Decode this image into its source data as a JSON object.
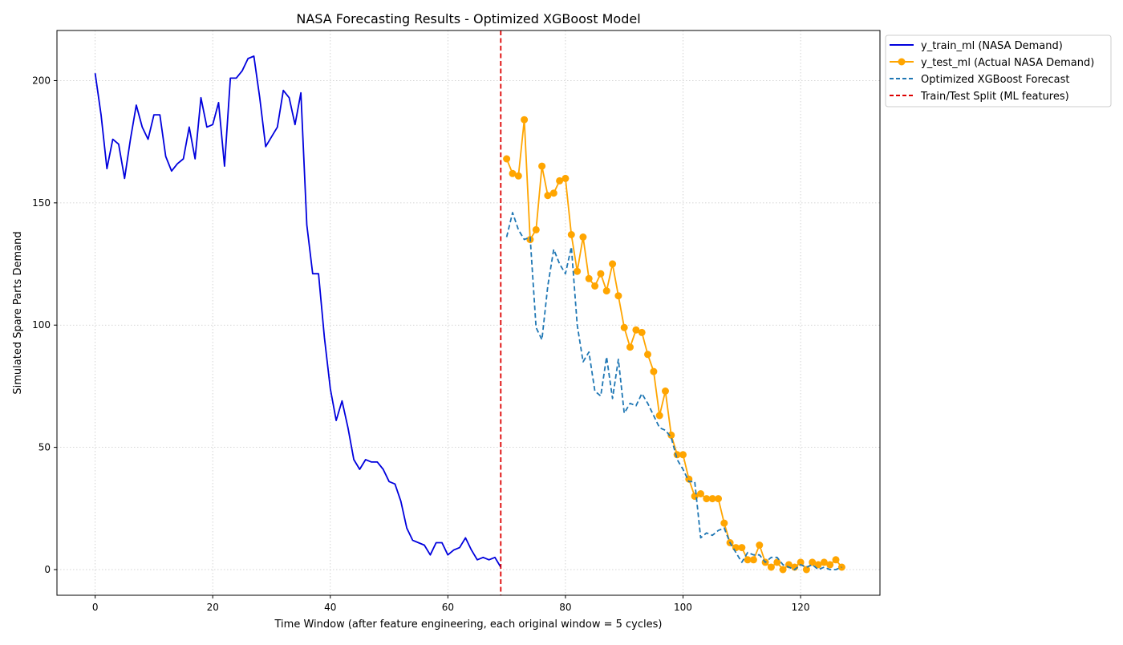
{
  "chart_data": {
    "type": "line",
    "title": "NASA Forecasting Results - Optimized XGBoost Model",
    "xlabel": "Time Window (after feature engineering, each original window = 5 cycles)",
    "ylabel": "Simulated Spare Parts Demand",
    "xlim": [
      -6.5,
      133.5
    ],
    "ylim": [
      -10.5,
      220.5
    ],
    "xticks": [
      0,
      20,
      40,
      60,
      80,
      100,
      120
    ],
    "yticks": [
      0,
      50,
      100,
      150,
      200
    ],
    "grid": true,
    "legend_position": "outside-top-right",
    "split_x": 69,
    "series": [
      {
        "name": "y_train_ml (NASA Demand)",
        "color": "#0000dd",
        "style": "solid",
        "x": [
          0,
          1,
          2,
          3,
          4,
          5,
          6,
          7,
          8,
          9,
          10,
          11,
          12,
          13,
          14,
          15,
          16,
          17,
          18,
          19,
          20,
          21,
          22,
          23,
          24,
          25,
          26,
          27,
          28,
          29,
          30,
          31,
          32,
          33,
          34,
          35,
          36,
          37,
          38,
          39,
          40,
          41,
          42,
          43,
          44,
          45,
          46,
          47,
          48,
          49,
          50,
          51,
          52,
          53,
          54,
          55,
          56,
          57,
          58,
          59,
          60,
          61,
          62,
          63,
          64,
          65,
          66,
          67,
          68,
          69
        ],
        "y": [
          203,
          186,
          164,
          176,
          174,
          160,
          176,
          190,
          181,
          176,
          186,
          186,
          169,
          163,
          166,
          168,
          181,
          168,
          193,
          181,
          182,
          191,
          165,
          201,
          201,
          204,
          209,
          210,
          193,
          173,
          177,
          181,
          196,
          193,
          182,
          195,
          141,
          121,
          121,
          95,
          74,
          61,
          69,
          58,
          45,
          41,
          45,
          44,
          44,
          41,
          36,
          35,
          28,
          17,
          12,
          11,
          10,
          6,
          11,
          11,
          6,
          8,
          9,
          13,
          8,
          4,
          5,
          4,
          5,
          1
        ]
      },
      {
        "name": "y_test_ml (Actual NASA Demand)",
        "color": "#ffa500",
        "style": "solid-markers",
        "x": [
          70,
          71,
          72,
          73,
          74,
          75,
          76,
          77,
          78,
          79,
          80,
          81,
          82,
          83,
          84,
          85,
          86,
          87,
          88,
          89,
          90,
          91,
          92,
          93,
          94,
          95,
          96,
          97,
          98,
          99,
          100,
          101,
          102,
          103,
          104,
          105,
          106,
          107,
          108,
          109,
          110,
          111,
          112,
          113,
          114,
          115,
          116,
          117,
          118,
          119,
          120,
          121,
          122,
          123,
          124,
          125,
          126,
          127
        ],
        "y": [
          168,
          162,
          161,
          184,
          135,
          139,
          165,
          153,
          154,
          159,
          160,
          137,
          122,
          136,
          119,
          116,
          121,
          114,
          125,
          112,
          99,
          91,
          98,
          97,
          88,
          81,
          63,
          73,
          55,
          47,
          47,
          37,
          30,
          31,
          29,
          29,
          29,
          19,
          11,
          9,
          9,
          4,
          4,
          10,
          3,
          1,
          3,
          0,
          2,
          1,
          3,
          0,
          3,
          2,
          3,
          2,
          4,
          1
        ]
      },
      {
        "name": "Optimized XGBoost Forecast",
        "color": "#1f77b4",
        "style": "dashed",
        "x": [
          70,
          71,
          72,
          73,
          74,
          75,
          76,
          77,
          78,
          79,
          80,
          81,
          82,
          83,
          84,
          85,
          86,
          87,
          88,
          89,
          90,
          91,
          92,
          93,
          94,
          95,
          96,
          97,
          98,
          99,
          100,
          101,
          102,
          103,
          104,
          105,
          106,
          107,
          108,
          109,
          110,
          111,
          112,
          113,
          114,
          115,
          116,
          117,
          118,
          119,
          120,
          121,
          122,
          123,
          124,
          125,
          126,
          127
        ],
        "y": [
          136,
          146,
          139,
          135,
          136,
          99,
          94,
          116,
          131,
          125,
          121,
          132,
          100,
          85,
          89,
          73,
          71,
          87,
          70,
          86,
          64,
          68,
          67,
          72,
          68,
          63,
          58,
          57,
          54,
          45,
          41,
          36,
          36,
          13,
          15,
          14,
          16,
          17,
          11,
          7,
          3,
          7,
          6,
          6,
          3,
          5,
          5,
          2,
          1,
          0,
          2,
          1,
          2,
          0,
          1,
          0,
          0,
          1
        ]
      }
    ],
    "split_line": {
      "name": "Train/Test Split (ML features)",
      "color": "#dd0000",
      "style": "dashed"
    }
  }
}
